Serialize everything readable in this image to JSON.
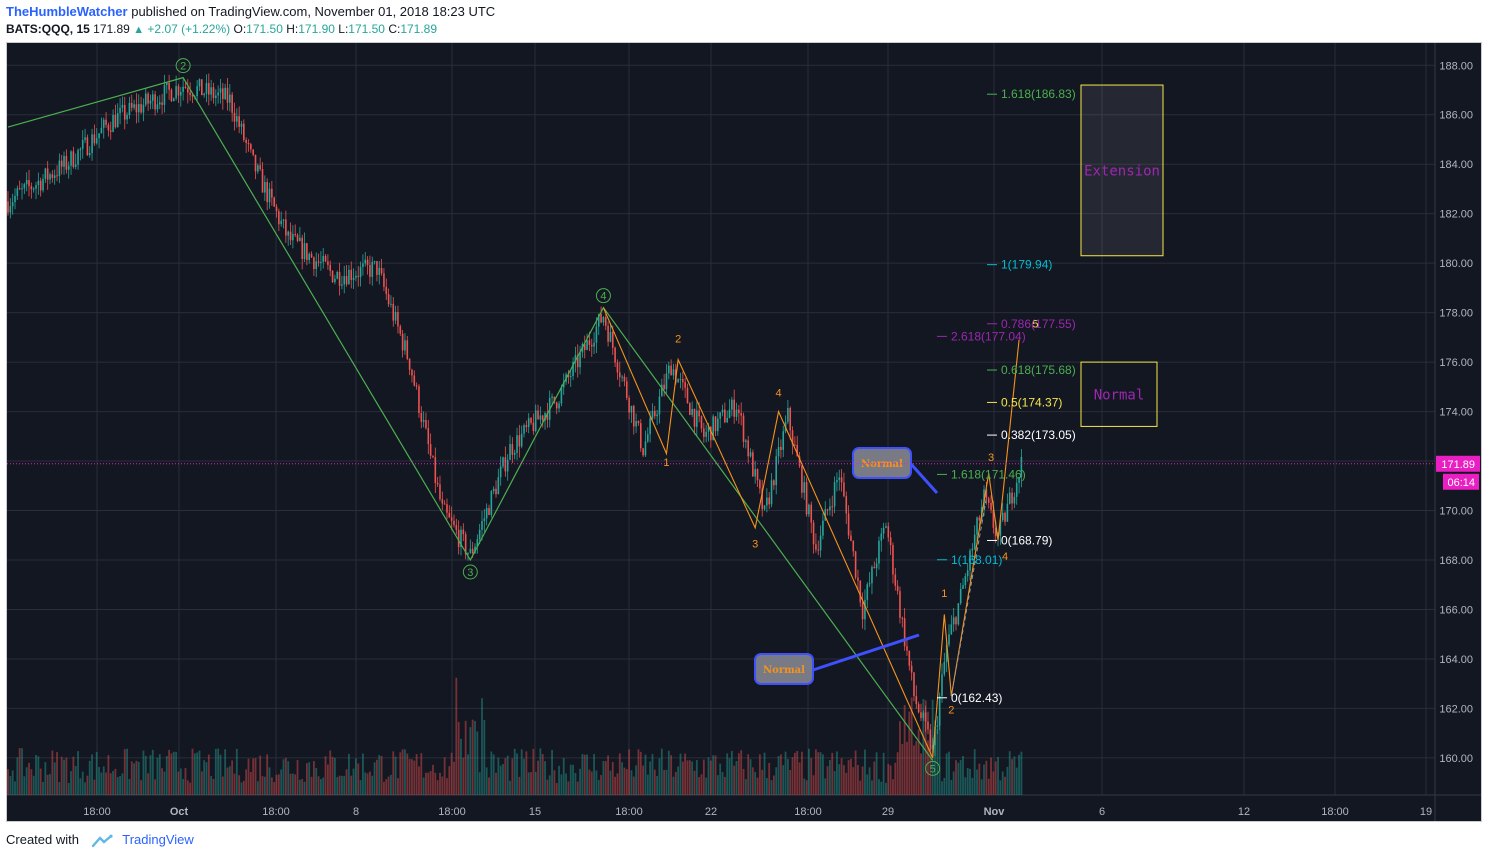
{
  "header": {
    "author": "TheHumbleWatcher",
    "published_text": "published on TradingView.com, November 01, 2018 18:23 UTC",
    "symbol": "BATS:QQQ, 15",
    "last": "171.89",
    "change": "+2.07 (+1.22%)",
    "o_label": "O:",
    "o_val": "171.50",
    "h_label": "H:",
    "h_val": "171.90",
    "l_label": "L:",
    "l_val": "171.50",
    "c_label": "C:",
    "c_val": "171.89"
  },
  "footer": {
    "created_with": "Created with",
    "brand": "TradingView"
  },
  "colors": {
    "background": "#131722",
    "grid": "#2a2e39",
    "up": "#26a69a",
    "down": "#ef5350",
    "green": "#4caf50",
    "orange": "#f7931a",
    "cyan": "#00bcd4",
    "purple": "#9c27b0",
    "yellow": "#f5e54a",
    "price_tag": "#e91ec3",
    "text": "#d1d4dc"
  },
  "chart_data": {
    "type": "candlestick",
    "symbol": "BATS:QQQ",
    "interval": "15",
    "ylim": [
      158.5,
      188.9
    ],
    "y_ticks": [
      "188.00",
      "186.00",
      "184.00",
      "182.00",
      "180.00",
      "178.00",
      "176.00",
      "174.00",
      "172.00",
      "170.00",
      "168.00",
      "166.00",
      "164.00",
      "162.00",
      "160.00"
    ],
    "x_ticks": [
      "18:00",
      "Oct",
      "18:00",
      "8",
      "18:00",
      "15",
      "18:00",
      "22",
      "18:00",
      "29",
      "Nov",
      "6",
      "12",
      "18:00",
      "19"
    ],
    "last_price": "171.89",
    "countdown": "06:14",
    "price_path_anchors": [
      {
        "bar": 0,
        "price": 182.5
      },
      {
        "bar": 25,
        "price": 184.0
      },
      {
        "bar": 45,
        "price": 185.8
      },
      {
        "bar": 75,
        "price": 187.2
      },
      {
        "bar": 95,
        "price": 186.6
      },
      {
        "bar": 105,
        "price": 184.0
      },
      {
        "bar": 120,
        "price": 181.0
      },
      {
        "bar": 140,
        "price": 179.5
      },
      {
        "bar": 158,
        "price": 179.8
      },
      {
        "bar": 172,
        "price": 176.0
      },
      {
        "bar": 186,
        "price": 170.0
      },
      {
        "bar": 198,
        "price": 168.2
      },
      {
        "bar": 215,
        "price": 172.5
      },
      {
        "bar": 235,
        "price": 174.5
      },
      {
        "bar": 255,
        "price": 177.9
      },
      {
        "bar": 272,
        "price": 172.5
      },
      {
        "bar": 284,
        "price": 175.9
      },
      {
        "bar": 298,
        "price": 173.0
      },
      {
        "bar": 312,
        "price": 174.3
      },
      {
        "bar": 324,
        "price": 169.8
      },
      {
        "bar": 334,
        "price": 173.8
      },
      {
        "bar": 346,
        "price": 168.5
      },
      {
        "bar": 356,
        "price": 171.5
      },
      {
        "bar": 366,
        "price": 166.0
      },
      {
        "bar": 376,
        "price": 169.5
      },
      {
        "bar": 388,
        "price": 162.5
      },
      {
        "bar": 396,
        "price": 160.3
      },
      {
        "bar": 402,
        "price": 164.5
      },
      {
        "bar": 408,
        "price": 166.5
      },
      {
        "bar": 418,
        "price": 170.5
      },
      {
        "bar": 424,
        "price": 168.9
      },
      {
        "bar": 434,
        "price": 171.9
      }
    ],
    "wave_labels": {
      "major": [
        "2",
        "3",
        "4",
        "5"
      ],
      "minor_down": [
        "1",
        "2",
        "3",
        "4"
      ],
      "minor_up": [
        "1",
        "2",
        "3",
        "4",
        "5"
      ]
    },
    "fib_levels": [
      {
        "label": "1.618(186.83)",
        "color": "#4caf50"
      },
      {
        "label": "1(179.94)",
        "color": "#00bcd4"
      },
      {
        "label": "0.786(177.55)",
        "color": "#9c27b0"
      },
      {
        "label": "2.618(177.04)",
        "color": "#9c27b0"
      },
      {
        "label": "0.618(175.68)",
        "color": "#4caf50"
      },
      {
        "label": "0.5(174.37)",
        "color": "#f5e54a"
      },
      {
        "label": "0.382(173.05)",
        "color": "#ffffff"
      },
      {
        "label": "1.618(171.46)",
        "color": "#4caf50"
      },
      {
        "label": "0(168.79)",
        "color": "#ffffff"
      },
      {
        "label": "1(168.01)",
        "color": "#00bcd4"
      },
      {
        "label": "0(162.43)",
        "color": "#ffffff"
      }
    ],
    "target_boxes": [
      {
        "label": "Extension",
        "from": 180.3,
        "to": 187.2
      },
      {
        "label": "Normal",
        "from": 173.4,
        "to": 176.0
      }
    ],
    "callouts": [
      "Normal",
      "Normal"
    ]
  }
}
